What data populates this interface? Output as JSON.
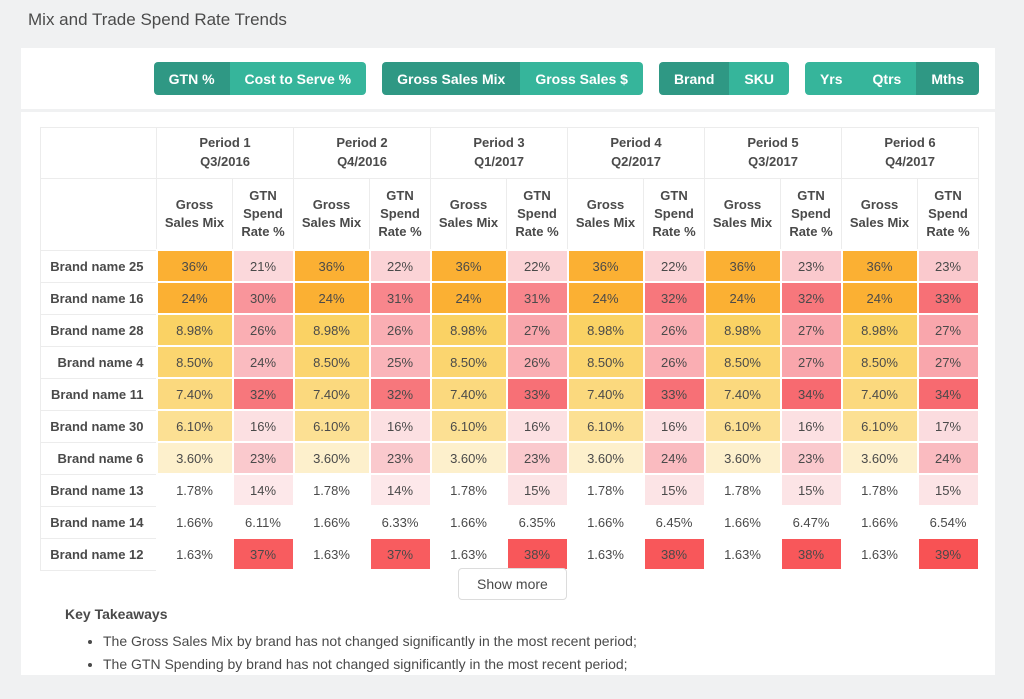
{
  "page": {
    "title": "Mix and Trade Spend Rate Trends"
  },
  "colors": {
    "toggle_selected": "#2f9884",
    "toggle_unselected": "#36b59b",
    "orange_strong": "#FBB033",
    "red_strong": "#F85C5F",
    "card_background": "#ffffff",
    "page_background": "#f0f1f2"
  },
  "toolbar": {
    "groups": [
      {
        "name": "metric",
        "buttons": [
          {
            "label": "GTN %",
            "selected": true
          },
          {
            "label": "Cost to Serve %",
            "selected": false
          }
        ]
      },
      {
        "name": "sales-measure",
        "buttons": [
          {
            "label": "Gross Sales Mix",
            "selected": true
          },
          {
            "label": "Gross Sales $",
            "selected": false
          }
        ]
      },
      {
        "name": "level",
        "buttons": [
          {
            "label": "Brand",
            "selected": true
          },
          {
            "label": "SKU",
            "selected": false
          }
        ]
      },
      {
        "name": "time-grain",
        "buttons": [
          {
            "label": "Yrs",
            "selected": false
          },
          {
            "label": "Qtrs",
            "selected": false
          },
          {
            "label": "Mths",
            "selected": true
          }
        ]
      }
    ]
  },
  "table": {
    "periods": [
      {
        "name": "Period 1",
        "quarter": "Q3/2016"
      },
      {
        "name": "Period 2",
        "quarter": "Q4/2016"
      },
      {
        "name": "Period 3",
        "quarter": "Q1/2017"
      },
      {
        "name": "Period 4",
        "quarter": "Q2/2017"
      },
      {
        "name": "Period 5",
        "quarter": "Q3/2017"
      },
      {
        "name": "Period 6",
        "quarter": "Q4/2017"
      }
    ],
    "sub_columns": [
      "Gross Sales Mix",
      "GTN Spend Rate %"
    ],
    "rows": [
      {
        "brand": "Brand name 25",
        "cells": [
          {
            "t": "36%",
            "bg": "#FBB033"
          },
          {
            "t": "21%",
            "bg": "#FBD8DB"
          },
          {
            "t": "36%",
            "bg": "#FBB033"
          },
          {
            "t": "22%",
            "bg": "#FBD3D6"
          },
          {
            "t": "36%",
            "bg": "#FBB033"
          },
          {
            "t": "22%",
            "bg": "#FBD3D6"
          },
          {
            "t": "36%",
            "bg": "#FBB033"
          },
          {
            "t": "22%",
            "bg": "#FBD3D6"
          },
          {
            "t": "36%",
            "bg": "#FBB033"
          },
          {
            "t": "23%",
            "bg": "#FAC9CD"
          },
          {
            "t": "36%",
            "bg": "#FBB033"
          },
          {
            "t": "23%",
            "bg": "#FAC9CD"
          }
        ]
      },
      {
        "brand": "Brand name 16",
        "cells": [
          {
            "t": "24%",
            "bg": "#FBB033"
          },
          {
            "t": "30%",
            "bg": "#F9959B"
          },
          {
            "t": "24%",
            "bg": "#FBB033"
          },
          {
            "t": "31%",
            "bg": "#F8868C"
          },
          {
            "t": "24%",
            "bg": "#FBB033"
          },
          {
            "t": "31%",
            "bg": "#F8868C"
          },
          {
            "t": "24%",
            "bg": "#FBB033"
          },
          {
            "t": "32%",
            "bg": "#F7777C"
          },
          {
            "t": "24%",
            "bg": "#FBB033"
          },
          {
            "t": "32%",
            "bg": "#F7777C"
          },
          {
            "t": "24%",
            "bg": "#FBB033"
          },
          {
            "t": "33%",
            "bg": "#F77076"
          }
        ]
      },
      {
        "brand": "Brand name 28",
        "cells": [
          {
            "t": "8.98%",
            "bg": "#FAD264"
          },
          {
            "t": "26%",
            "bg": "#FAAEB3"
          },
          {
            "t": "8.98%",
            "bg": "#FAD264"
          },
          {
            "t": "26%",
            "bg": "#FAAEB3"
          },
          {
            "t": "8.98%",
            "bg": "#FAD264"
          },
          {
            "t": "27%",
            "bg": "#F9A6AC"
          },
          {
            "t": "8.98%",
            "bg": "#FAD264"
          },
          {
            "t": "26%",
            "bg": "#FAAEB3"
          },
          {
            "t": "8.98%",
            "bg": "#FAD264"
          },
          {
            "t": "27%",
            "bg": "#F9A6AC"
          },
          {
            "t": "8.98%",
            "bg": "#FAD264"
          },
          {
            "t": "27%",
            "bg": "#F9A6AC"
          }
        ]
      },
      {
        "brand": "Brand name 4",
        "cells": [
          {
            "t": "8.50%",
            "bg": "#FBD56F"
          },
          {
            "t": "24%",
            "bg": "#FABBC0"
          },
          {
            "t": "8.50%",
            "bg": "#FBD56F"
          },
          {
            "t": "25%",
            "bg": "#FAB4B9"
          },
          {
            "t": "8.50%",
            "bg": "#FBD56F"
          },
          {
            "t": "26%",
            "bg": "#FAAEB3"
          },
          {
            "t": "8.50%",
            "bg": "#FBD56F"
          },
          {
            "t": "26%",
            "bg": "#FAAEB3"
          },
          {
            "t": "8.50%",
            "bg": "#FBD56F"
          },
          {
            "t": "27%",
            "bg": "#F9A6AC"
          },
          {
            "t": "8.50%",
            "bg": "#FBD56F"
          },
          {
            "t": "27%",
            "bg": "#F9A6AC"
          }
        ]
      },
      {
        "brand": "Brand name 11",
        "cells": [
          {
            "t": "7.40%",
            "bg": "#FBD97E"
          },
          {
            "t": "32%",
            "bg": "#F7777C"
          },
          {
            "t": "7.40%",
            "bg": "#FBD97E"
          },
          {
            "t": "32%",
            "bg": "#F7777C"
          },
          {
            "t": "7.40%",
            "bg": "#FBD97E"
          },
          {
            "t": "33%",
            "bg": "#F77076"
          },
          {
            "t": "7.40%",
            "bg": "#FBD97E"
          },
          {
            "t": "33%",
            "bg": "#F77076"
          },
          {
            "t": "7.40%",
            "bg": "#FBD97E"
          },
          {
            "t": "34%",
            "bg": "#F76A70"
          },
          {
            "t": "7.40%",
            "bg": "#FBD97E"
          },
          {
            "t": "34%",
            "bg": "#F76A70"
          }
        ]
      },
      {
        "brand": "Brand name 30",
        "cells": [
          {
            "t": "6.10%",
            "bg": "#FCE093"
          },
          {
            "t": "16%",
            "bg": "#FCE0E2"
          },
          {
            "t": "6.10%",
            "bg": "#FCE093"
          },
          {
            "t": "16%",
            "bg": "#FCE0E2"
          },
          {
            "t": "6.10%",
            "bg": "#FCE093"
          },
          {
            "t": "16%",
            "bg": "#FCE0E2"
          },
          {
            "t": "6.10%",
            "bg": "#FCE093"
          },
          {
            "t": "16%",
            "bg": "#FCE0E2"
          },
          {
            "t": "6.10%",
            "bg": "#FCE093"
          },
          {
            "t": "16%",
            "bg": "#FCE0E2"
          },
          {
            "t": "6.10%",
            "bg": "#FCE093"
          },
          {
            "t": "17%",
            "bg": "#FBDCDF"
          }
        ]
      },
      {
        "brand": "Brand name 6",
        "cells": [
          {
            "t": "3.60%",
            "bg": "#FDF0CC"
          },
          {
            "t": "23%",
            "bg": "#FAC9CD"
          },
          {
            "t": "3.60%",
            "bg": "#FDF0CC"
          },
          {
            "t": "23%",
            "bg": "#FAC9CD"
          },
          {
            "t": "3.60%",
            "bg": "#FDF0CC"
          },
          {
            "t": "23%",
            "bg": "#FAC9CD"
          },
          {
            "t": "3.60%",
            "bg": "#FDF0CC"
          },
          {
            "t": "24%",
            "bg": "#FABBC0"
          },
          {
            "t": "3.60%",
            "bg": "#FDF0CC"
          },
          {
            "t": "23%",
            "bg": "#FAC9CD"
          },
          {
            "t": "3.60%",
            "bg": "#FDF0CC"
          },
          {
            "t": "24%",
            "bg": "#FABBC0"
          }
        ]
      },
      {
        "brand": "Brand name 13",
        "cells": [
          {
            "t": "1.78%",
            "bg": "#FFFFFF"
          },
          {
            "t": "14%",
            "bg": "#FDE8EA"
          },
          {
            "t": "1.78%",
            "bg": "#FFFFFF"
          },
          {
            "t": "14%",
            "bg": "#FDE8EA"
          },
          {
            "t": "1.78%",
            "bg": "#FFFFFF"
          },
          {
            "t": "15%",
            "bg": "#FCE4E6"
          },
          {
            "t": "1.78%",
            "bg": "#FFFFFF"
          },
          {
            "t": "15%",
            "bg": "#FCE4E6"
          },
          {
            "t": "1.78%",
            "bg": "#FFFFFF"
          },
          {
            "t": "15%",
            "bg": "#FCE4E6"
          },
          {
            "t": "1.78%",
            "bg": "#FFFFFF"
          },
          {
            "t": "15%",
            "bg": "#FCE4E6"
          }
        ]
      },
      {
        "brand": "Brand name 14",
        "cells": [
          {
            "t": "1.66%",
            "bg": "#FFFFFF"
          },
          {
            "t": "6.11%",
            "bg": "#FFFFFF"
          },
          {
            "t": "1.66%",
            "bg": "#FFFFFF"
          },
          {
            "t": "6.33%",
            "bg": "#FFFFFF"
          },
          {
            "t": "1.66%",
            "bg": "#FFFFFF"
          },
          {
            "t": "6.35%",
            "bg": "#FFFFFF"
          },
          {
            "t": "1.66%",
            "bg": "#FFFFFF"
          },
          {
            "t": "6.45%",
            "bg": "#FFFFFF"
          },
          {
            "t": "1.66%",
            "bg": "#FFFFFF"
          },
          {
            "t": "6.47%",
            "bg": "#FFFFFF"
          },
          {
            "t": "1.66%",
            "bg": "#FFFFFF"
          },
          {
            "t": "6.54%",
            "bg": "#FFFFFF"
          }
        ]
      },
      {
        "brand": "Brand name 12",
        "cells": [
          {
            "t": "1.63%",
            "bg": "#FFFFFF"
          },
          {
            "t": "37%",
            "bg": "#F85C5F"
          },
          {
            "t": "1.63%",
            "bg": "#FFFFFF"
          },
          {
            "t": "37%",
            "bg": "#F85C5F"
          },
          {
            "t": "1.63%",
            "bg": "#FFFFFF"
          },
          {
            "t": "38%",
            "bg": "#F8575A"
          },
          {
            "t": "1.63%",
            "bg": "#FFFFFF"
          },
          {
            "t": "38%",
            "bg": "#F8575A"
          },
          {
            "t": "1.63%",
            "bg": "#FFFFFF"
          },
          {
            "t": "38%",
            "bg": "#F8575A"
          },
          {
            "t": "1.63%",
            "bg": "#FFFFFF"
          },
          {
            "t": "39%",
            "bg": "#F85254"
          }
        ]
      }
    ]
  },
  "show_more": {
    "label": "Show more"
  },
  "key_takeaways": {
    "title": "Key Takeaways",
    "bullets": [
      "The Gross Sales Mix by brand has not changed significantly in the most recent period;",
      "The GTN Spending by brand has not changed significantly in the most recent period;"
    ]
  }
}
